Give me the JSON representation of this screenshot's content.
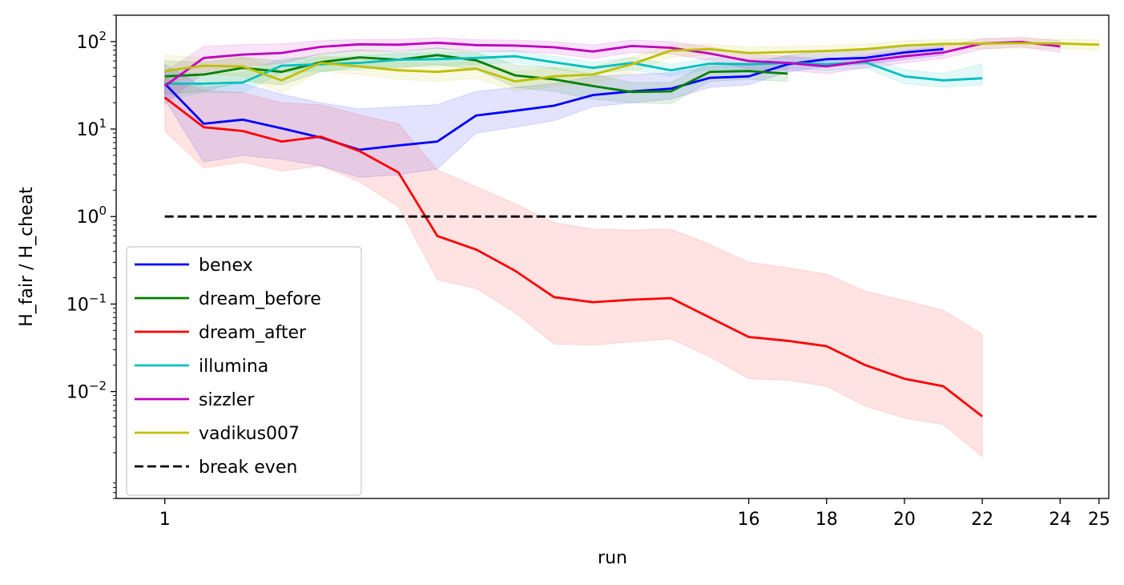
{
  "chart_data": {
    "type": "line",
    "title": "",
    "xlabel": "run",
    "ylabel": "H_fair / H_cheat",
    "yscale": "log",
    "ylim": [
      0.0006,
      200
    ],
    "xlim": [
      -0.25,
      25.25
    ],
    "xticks": [
      {
        "value": 1,
        "label": "1"
      },
      {
        "value": 16,
        "label": "16"
      },
      {
        "value": 18,
        "label": "18"
      },
      {
        "value": 20,
        "label": "20"
      },
      {
        "value": 22,
        "label": "22"
      },
      {
        "value": 24,
        "label": "24"
      },
      {
        "value": 25,
        "label": "25"
      }
    ],
    "yticks": [
      {
        "value": 0.01,
        "base": "10",
        "exp": "−2"
      },
      {
        "value": 0.1,
        "base": "10",
        "exp": "−1"
      },
      {
        "value": 1,
        "base": "10",
        "exp": "0"
      },
      {
        "value": 10,
        "base": "10",
        "exp": "1"
      },
      {
        "value": 100,
        "base": "10",
        "exp": "2"
      }
    ],
    "legend_position": "lower-left",
    "series": [
      {
        "name": "benex",
        "color": "#0000ff",
        "x": [
          1,
          2,
          3,
          4,
          5,
          6,
          7,
          8,
          9,
          10,
          11,
          12,
          13,
          14,
          15,
          16,
          17,
          18,
          19,
          20,
          21
        ],
        "y": [
          33,
          11.5,
          12.8,
          10.2,
          8,
          5.8,
          6.5,
          7.2,
          14.3,
          16.2,
          18.5,
          24.5,
          27,
          29,
          38.5,
          40,
          55,
          63,
          65,
          75,
          82
        ],
        "lower": [
          22,
          4.2,
          5,
          4.5,
          3.8,
          2.8,
          3,
          3.5,
          9,
          10.5,
          12.5,
          18,
          20,
          22,
          30,
          32,
          45,
          52,
          55,
          62,
          70
        ],
        "upper": [
          55,
          30,
          33,
          25,
          20,
          17,
          18,
          19,
          27,
          30,
          33,
          40,
          42,
          44,
          52,
          55,
          70,
          78,
          80,
          88,
          95
        ]
      },
      {
        "name": "dream_before",
        "color": "#008000",
        "x": [
          1,
          2,
          3,
          4,
          5,
          6,
          7,
          8,
          9,
          10,
          11,
          12,
          13,
          14,
          15,
          16,
          17
        ],
        "y": [
          40,
          42,
          50,
          45,
          58,
          66,
          62,
          70,
          61,
          41,
          37,
          31,
          26.5,
          27,
          45,
          46,
          43
        ],
        "lower": [
          25,
          27,
          35,
          32,
          45,
          52,
          50,
          55,
          48,
          30,
          27,
          22,
          20,
          19.5,
          35,
          37,
          35
        ],
        "upper": [
          60,
          58,
          66,
          60,
          72,
          80,
          76,
          85,
          75,
          54,
          50,
          42,
          34,
          34,
          57,
          57,
          53
        ]
      },
      {
        "name": "dream_after",
        "color": "#ff0000",
        "x": [
          1,
          2,
          3,
          4,
          5,
          6,
          7,
          8,
          9,
          10,
          11,
          12,
          13,
          14,
          15,
          16,
          17,
          18,
          19,
          20,
          21,
          22
        ],
        "y": [
          23,
          10.5,
          9.5,
          7.2,
          8.2,
          5.6,
          3.2,
          0.6,
          0.42,
          0.24,
          0.12,
          0.105,
          0.112,
          0.117,
          0.07,
          0.042,
          0.038,
          0.033,
          0.02,
          0.014,
          0.0115,
          0.0052
        ],
        "lower": [
          9.5,
          3.6,
          4.2,
          3.3,
          3.8,
          2.5,
          1.3,
          0.19,
          0.15,
          0.08,
          0.035,
          0.034,
          0.037,
          0.04,
          0.025,
          0.014,
          0.0135,
          0.0115,
          0.0068,
          0.005,
          0.0042,
          0.0018
        ],
        "upper": [
          38,
          28,
          26,
          20,
          19,
          14.5,
          11.5,
          3.4,
          2.2,
          1.4,
          0.85,
          0.72,
          0.7,
          0.72,
          0.48,
          0.3,
          0.26,
          0.22,
          0.14,
          0.11,
          0.085,
          0.045
        ]
      },
      {
        "name": "illumina",
        "color": "#00bfbf",
        "x": [
          1,
          2,
          3,
          4,
          5,
          6,
          7,
          8,
          9,
          10,
          11,
          12,
          13,
          14,
          15,
          16,
          17,
          18,
          19,
          20,
          21,
          22
        ],
        "y": [
          33,
          33,
          34,
          53,
          55,
          57,
          62,
          63,
          65,
          68,
          58,
          50,
          57,
          47,
          56,
          55,
          57,
          55,
          58,
          40,
          36,
          38
        ],
        "lower": [
          22,
          26,
          26,
          44,
          46,
          48,
          52,
          53,
          55,
          58,
          49,
          43,
          48,
          40,
          48,
          47,
          49,
          47,
          50,
          33,
          30,
          32
        ],
        "upper": [
          48,
          42,
          44,
          64,
          66,
          68,
          73,
          74,
          76,
          79,
          68,
          58,
          66,
          55,
          65,
          64,
          66,
          64,
          67,
          48,
          43,
          56
        ]
      },
      {
        "name": "sizzler",
        "color": "#bf00bf",
        "x": [
          1,
          2,
          3,
          4,
          5,
          6,
          7,
          8,
          9,
          10,
          11,
          12,
          13,
          14,
          15,
          16,
          17,
          18,
          19,
          20,
          21,
          22,
          23,
          24
        ],
        "y": [
          31,
          65,
          71,
          74,
          87,
          93,
          92,
          97,
          91,
          90,
          86,
          77,
          89,
          85,
          73,
          60,
          57,
          52,
          60,
          68,
          75,
          95,
          99,
          88
        ],
        "lower": [
          19,
          45,
          52,
          56,
          72,
          79,
          78,
          84,
          78,
          77,
          73,
          64,
          75,
          72,
          61,
          49,
          47,
          43,
          50,
          57,
          64,
          82,
          87,
          75
        ],
        "upper": [
          45,
          88,
          92,
          94,
          102,
          106,
          106,
          110,
          105,
          104,
          100,
          91,
          104,
          100,
          87,
          72,
          68,
          62,
          70,
          80,
          88,
          108,
          112,
          102
        ]
      },
      {
        "name": "vadikus007",
        "color": "#bfbf00",
        "x": [
          1,
          2,
          3,
          4,
          5,
          6,
          7,
          8,
          9,
          10,
          11,
          12,
          13,
          14,
          15,
          16,
          17,
          18,
          19,
          20,
          21,
          22,
          23,
          24,
          25
        ],
        "y": [
          46,
          53,
          52,
          36,
          57,
          52,
          47,
          45,
          49,
          35,
          40,
          42,
          55,
          79,
          82,
          74,
          76,
          78,
          82,
          90,
          94,
          95,
          96,
          95,
          92
        ],
        "lower": [
          33,
          43,
          40,
          26,
          46,
          42,
          37,
          35,
          38,
          27,
          31,
          33,
          44,
          66,
          70,
          63,
          65,
          67,
          71,
          78,
          82,
          83,
          84,
          83,
          80
        ],
        "upper": [
          70,
          65,
          68,
          48,
          69,
          63,
          58,
          56,
          60,
          45,
          50,
          52,
          67,
          92,
          94,
          86,
          88,
          90,
          94,
          102,
          106,
          107,
          108,
          107,
          104
        ]
      },
      {
        "name": "break even",
        "color": "#000000",
        "dashed": true,
        "x": [
          1,
          25
        ],
        "y": [
          1,
          1
        ]
      }
    ]
  }
}
